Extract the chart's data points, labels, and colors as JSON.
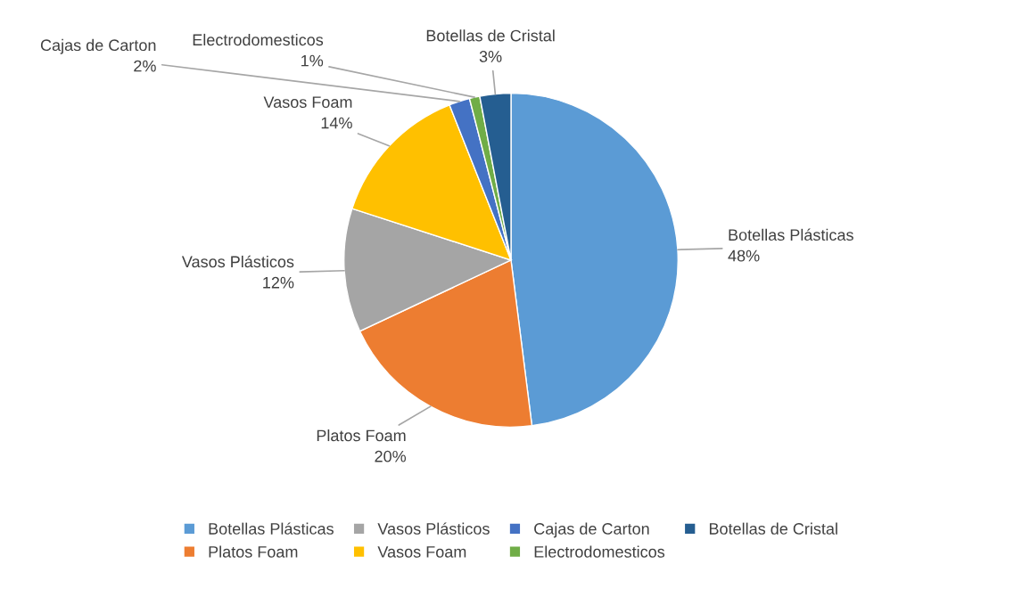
{
  "chart_data": {
    "type": "pie",
    "categories": [
      "Botellas Plásticas",
      "Platos Foam",
      "Vasos Plásticos",
      "Vasos Foam",
      "Cajas de Carton",
      "Electrodomesticos",
      "Botellas de Cristal"
    ],
    "values": [
      48,
      20,
      12,
      14,
      2,
      1,
      3
    ],
    "value_labels": [
      "48%",
      "20%",
      "12%",
      "14%",
      "2%",
      "1%",
      "3%"
    ],
    "colors": [
      "#5b9bd5",
      "#ed7d31",
      "#a5a5a5",
      "#ffc000",
      "#4472c4",
      "#70ad47",
      "#255e91"
    ],
    "legend": "bottom"
  }
}
